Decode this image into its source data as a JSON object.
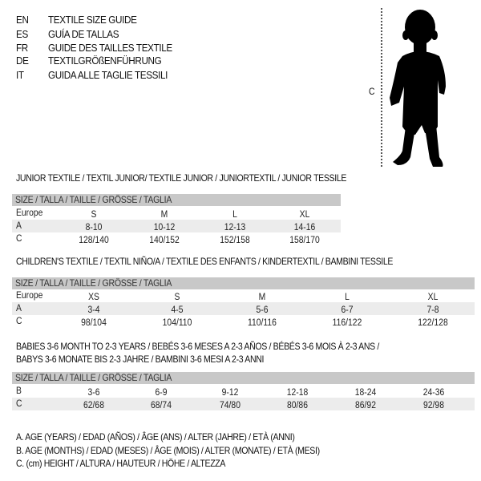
{
  "languages": [
    {
      "code": "EN",
      "title": "TEXTILE SIZE GUIDE"
    },
    {
      "code": "ES",
      "title": "GUÍA DE TALLAS"
    },
    {
      "code": "FR",
      "title": "GUIDE DES TAILLES TEXTILE"
    },
    {
      "code": "DE",
      "title": "TEXTILGRÖßENFÜHRUNG"
    },
    {
      "code": "IT",
      "title": "GUIDA ALLE TAGLIE TESSILI"
    }
  ],
  "figure": {
    "measure_label": "C",
    "icon": "baby-silhouette"
  },
  "header_label": "SIZE / TALLA / TAILLE / GRÖSSE / TAGLIA",
  "tables": [
    {
      "title": "JUNIOR TEXTILE / TEXTIL JUNIOR/ TEXTILE JUNIOR / JUNIORTEXTIL / JUNIOR TESSILE",
      "rows": [
        {
          "label": "Europe",
          "values": [
            "S",
            "M",
            "L",
            "XL"
          ]
        },
        {
          "label": "A",
          "values": [
            "8-10",
            "10-12",
            "12-13",
            "14-16"
          ]
        },
        {
          "label": "C",
          "values": [
            "128/140",
            "140/152",
            "152/158",
            "158/170"
          ]
        }
      ]
    },
    {
      "title": "CHILDREN'S TEXTILE / TEXTIL NIÑO/A / TEXTILE DES ENFANTS / KINDERTEXTIL / BAMBINI TESSILE",
      "rows": [
        {
          "label": "Europe",
          "values": [
            "XS",
            "S",
            "M",
            "L",
            "XL"
          ]
        },
        {
          "label": "A",
          "values": [
            "3-4",
            "4-5",
            "5-6",
            "6-7",
            "7-8"
          ]
        },
        {
          "label": "C",
          "values": [
            "98/104",
            "104/110",
            "110/116",
            "116/122",
            "122/128"
          ]
        }
      ]
    },
    {
      "title": "BABIES 3-6 MONTH TO 2-3 YEARS / BEBÉS 3-6 MESES A 2-3 AÑOS / BÉBÉS 3-6 MOIS À 2-3 ANS /",
      "title2": "BABYS 3-6 MONATE BIS 2-3 JAHRE / BAMBINI 3-6 MESI A 2-3 ANNI",
      "rows": [
        {
          "label": "B",
          "values": [
            "3-6",
            "6-9",
            "9-12",
            "12-18",
            "18-24",
            "24-36"
          ]
        },
        {
          "label": "C",
          "values": [
            "62/68",
            "68/74",
            "74/80",
            "80/86",
            "86/92",
            "92/98"
          ]
        }
      ]
    }
  ],
  "legend": [
    "A. AGE (YEARS) / EDAD (AÑOS) / ÂGE (ANS) / ALTER (JAHRE) / ETÀ (ANNI)",
    "B. AGE (MONTHS) / EDAD (MESES) / ÂGE (MOIS) / ALTER (MONATE) / ETÀ (MESI)",
    "C. (cm) HEIGHT / ALTURA / HAUTEUR / HÖHE / ALTEZZA"
  ]
}
